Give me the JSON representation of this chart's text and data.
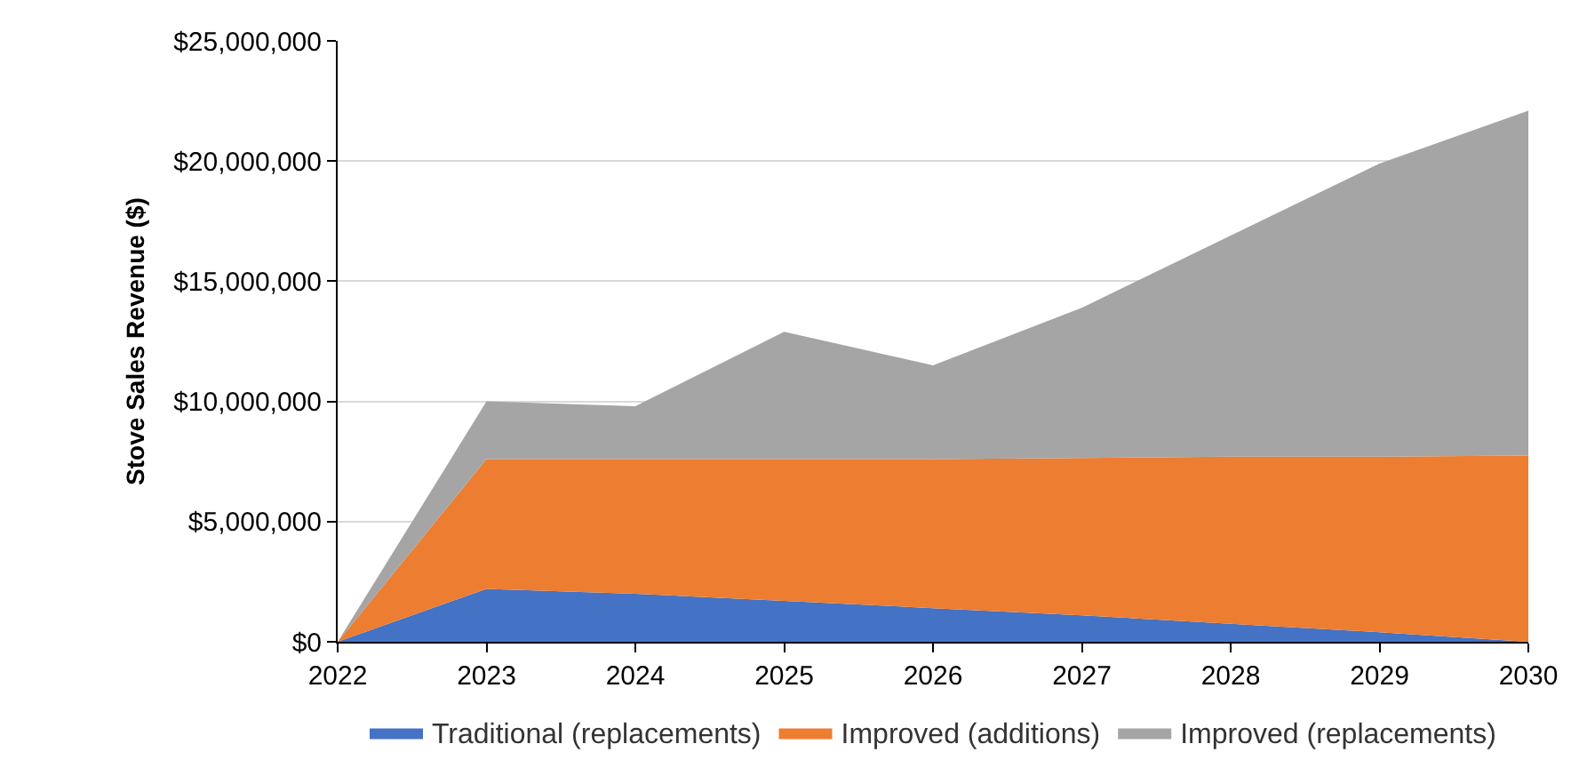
{
  "chart_data": {
    "type": "area",
    "stacked": true,
    "ylabel": "Stove Sales Revenue ($)",
    "x": [
      2022,
      2023,
      2024,
      2025,
      2026,
      2027,
      2028,
      2029,
      2030
    ],
    "xlim": [
      2022,
      2030
    ],
    "xticks": [
      2022,
      2023,
      2024,
      2025,
      2026,
      2027,
      2028,
      2029,
      2030
    ],
    "ylim": [
      0,
      25000000
    ],
    "yticks": [
      {
        "value": 0,
        "label": "$0"
      },
      {
        "value": 5000000,
        "label": "$5,000,000"
      },
      {
        "value": 10000000,
        "label": "$10,000,000"
      },
      {
        "value": 15000000,
        "label": "$15,000,000"
      },
      {
        "value": 20000000,
        "label": "$20,000,000"
      },
      {
        "value": 25000000,
        "label": "$25,000,000"
      }
    ],
    "grid": "y",
    "legend": "bottom",
    "series": [
      {
        "name": "Traditional (replacements)",
        "color": "#4472c4",
        "values": [
          0,
          2200000,
          2000000,
          1700000,
          1400000,
          1100000,
          750000,
          400000,
          0
        ]
      },
      {
        "name": "Improved (additions)",
        "color": "#ed7d31",
        "values": [
          0,
          5400000,
          5600000,
          5900000,
          6200000,
          6550000,
          6950000,
          7300000,
          7750000
        ]
      },
      {
        "name": "Improved (replacements)",
        "color": "#a5a5a5",
        "values": [
          0,
          2400000,
          2200000,
          5300000,
          3900000,
          6250000,
          9200000,
          12200000,
          14350000
        ]
      }
    ]
  }
}
